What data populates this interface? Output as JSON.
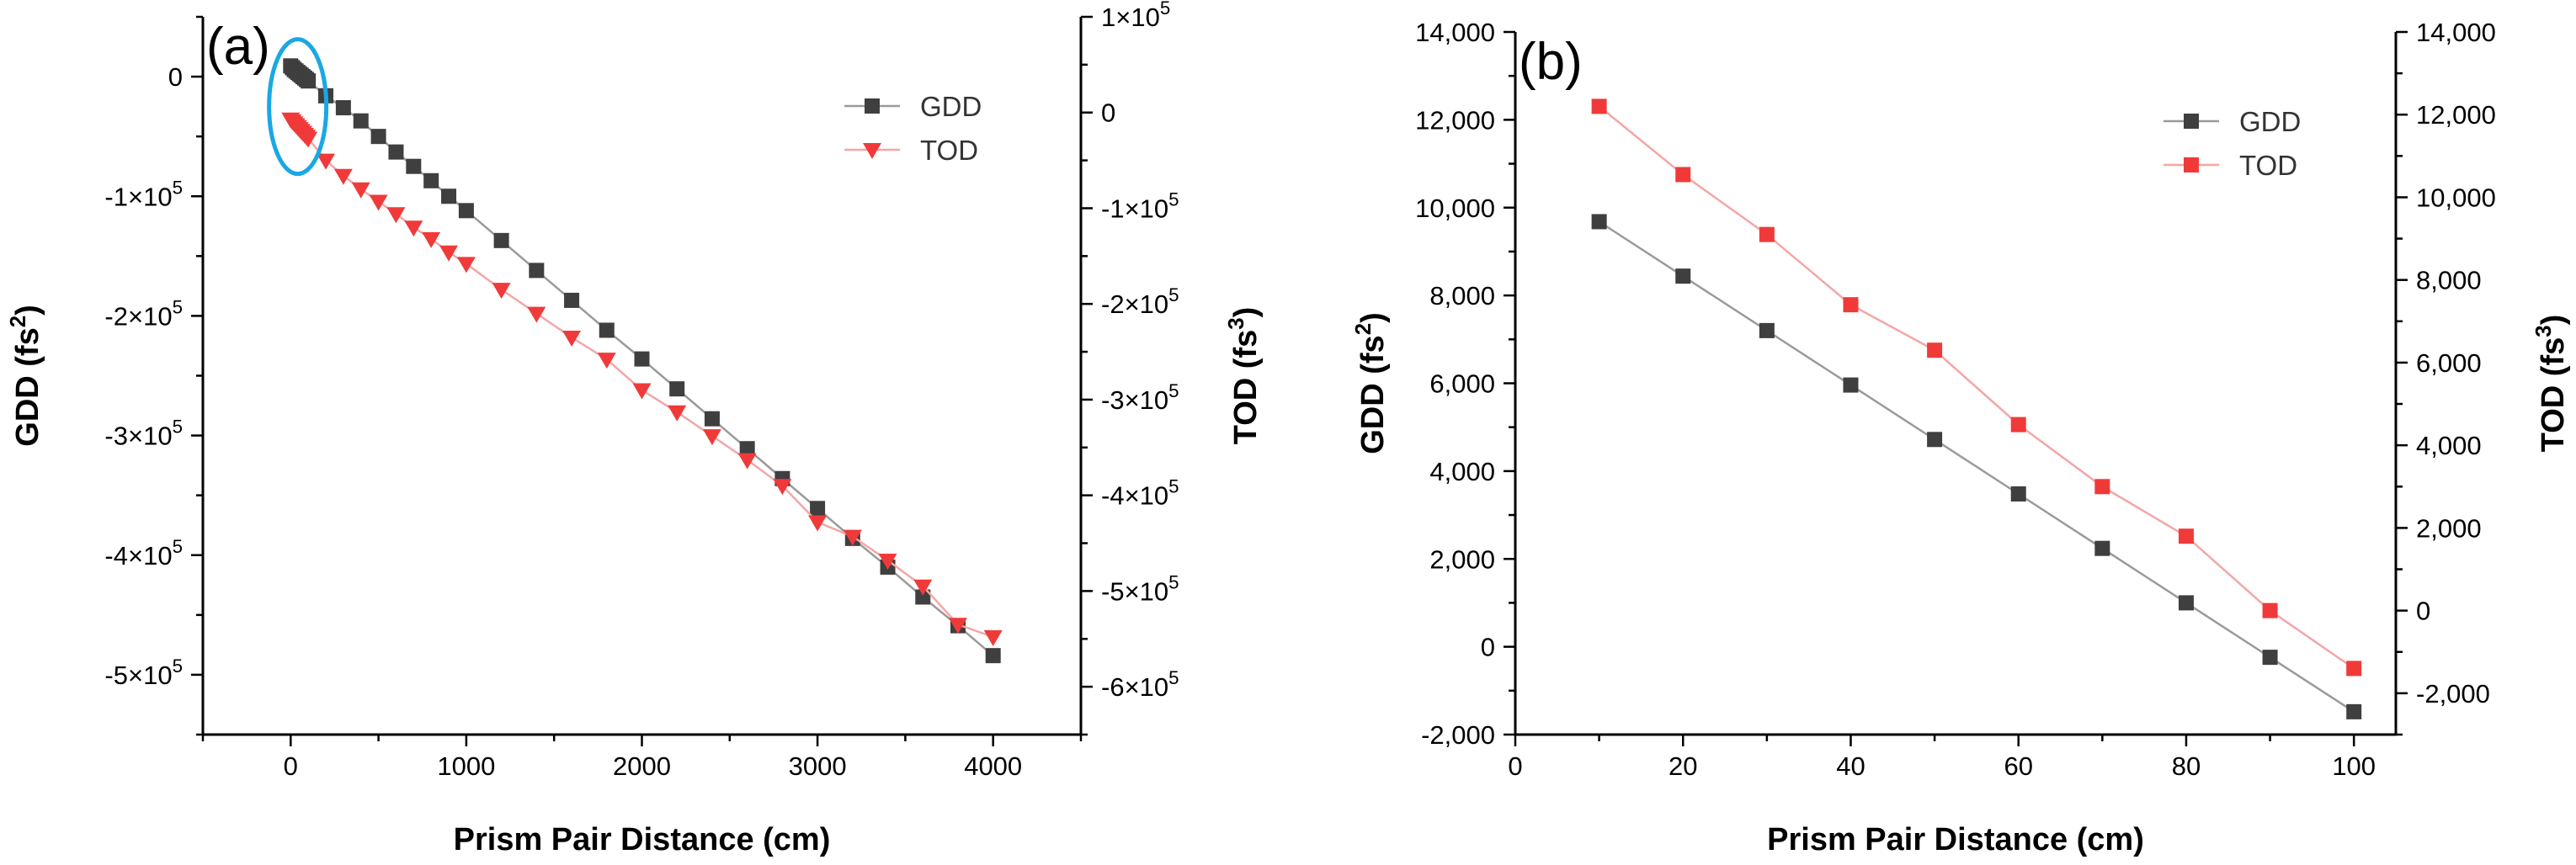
{
  "colors": {
    "gdd": "#3f3f3f",
    "gdd_line": "#9a9a9a",
    "tod": "#f03a3a",
    "tod_line": "#f4a6a6",
    "highlight": "#19a8e4"
  },
  "chart_data": [
    {
      "panel_label": "(a)",
      "type": "scatter",
      "xlabel": "Prism Pair Distance (cm)",
      "ylabel_left": "GDD (fs2)",
      "ylabel_right": "TOD (fs3)",
      "xlim": [
        -500,
        4500
      ],
      "ylim_left": [
        -550000,
        50000
      ],
      "ylim_right": [
        -650000,
        100000
      ],
      "x_ticks": [
        "0",
        "1000",
        "2000",
        "3000",
        "4000"
      ],
      "y_left_ticks": [
        "-5×10^5",
        "-4×10^5",
        "-3×10^5",
        "-2×10^5",
        "-1×10^5",
        "0"
      ],
      "y_right_ticks": [
        "-6×10^5",
        "-5×10^5",
        "-4×10^5",
        "-3×10^5",
        "-2×10^5",
        "-1×10^5",
        "0",
        "1×10^5"
      ],
      "legend": [
        "GDD",
        "TOD"
      ],
      "legend_position": "top-right",
      "annotation": "ellipse around data near x = 0",
      "series": [
        {
          "name": "GDD",
          "axis": "left",
          "marker": "square",
          "x": [
            0,
            10,
            20,
            30,
            40,
            50,
            60,
            70,
            80,
            90,
            100,
            200,
            300,
            400,
            500,
            600,
            700,
            800,
            900,
            1000,
            1200,
            1400,
            1600,
            1800,
            2000,
            2200,
            2400,
            2600,
            2800,
            3000,
            3200,
            3400,
            3600,
            3800,
            4000
          ],
          "y": [
            9000,
            7500,
            6000,
            4800,
            3600,
            2400,
            1200,
            0,
            -1200,
            -2400,
            -3600,
            -16000,
            -26000,
            -37000,
            -50000,
            -63000,
            -75000,
            -87000,
            -100000,
            -112000,
            -137000,
            -162000,
            -187000,
            -212000,
            -236000,
            -261000,
            -286000,
            -311000,
            -336000,
            -361000,
            -386000,
            -410000,
            -435000,
            -459000,
            -484000
          ]
        },
        {
          "name": "TOD",
          "axis": "right",
          "marker": "triangle-down",
          "x": [
            0,
            10,
            20,
            30,
            40,
            50,
            60,
            70,
            80,
            90,
            100,
            200,
            300,
            400,
            500,
            600,
            700,
            800,
            900,
            1000,
            1200,
            1400,
            1600,
            1800,
            2000,
            2200,
            2400,
            2600,
            2800,
            3000,
            3200,
            3400,
            3600,
            3800,
            4000
          ],
          "y": [
            -7000,
            -9000,
            -11000,
            -13000,
            -15000,
            -17000,
            -19000,
            -21000,
            -23000,
            -25000,
            -27000,
            -50000,
            -66000,
            -80000,
            -93000,
            -106000,
            -120000,
            -132000,
            -146000,
            -158000,
            -185000,
            -210000,
            -235000,
            -258000,
            -290000,
            -313000,
            -338000,
            -363000,
            -390000,
            -428000,
            -443000,
            -468000,
            -495000,
            -535000,
            -548000
          ]
        }
      ]
    },
    {
      "panel_label": "(b)",
      "type": "line",
      "xlabel": "Prism Pair Distance (cm)",
      "ylabel_left": "GDD (fs2)",
      "ylabel_right": "TOD (fs3)",
      "xlim": [
        0,
        105
      ],
      "ylim_left": [
        -2000,
        14000
      ],
      "ylim_right": [
        -3000,
        14000
      ],
      "x_ticks": [
        "0",
        "20",
        "40",
        "60",
        "80",
        "100"
      ],
      "y_left_ticks": [
        "-2,000",
        "0",
        "2,000",
        "4,000",
        "6,000",
        "8,000",
        "10,000",
        "12,000",
        "14,000"
      ],
      "y_right_ticks": [
        "-2,000",
        "0",
        "2,000",
        "4,000",
        "6,000",
        "8,000",
        "10,000",
        "12,000",
        "14,000"
      ],
      "legend": [
        "GDD",
        "TOD"
      ],
      "legend_position": "top-right",
      "series": [
        {
          "name": "GDD",
          "axis": "left",
          "marker": "square",
          "x": [
            10,
            20,
            30,
            40,
            50,
            60,
            70,
            80,
            90,
            100
          ],
          "y": [
            9680,
            8440,
            7200,
            5960,
            4720,
            3480,
            2240,
            1000,
            -240,
            -1480
          ]
        },
        {
          "name": "TOD",
          "axis": "right",
          "marker": "square",
          "x": [
            10,
            20,
            30,
            40,
            50,
            60,
            70,
            80,
            90,
            100
          ],
          "y": [
            12200,
            10550,
            9100,
            7400,
            6300,
            4500,
            3000,
            1800,
            0,
            -1400
          ]
        }
      ]
    }
  ]
}
